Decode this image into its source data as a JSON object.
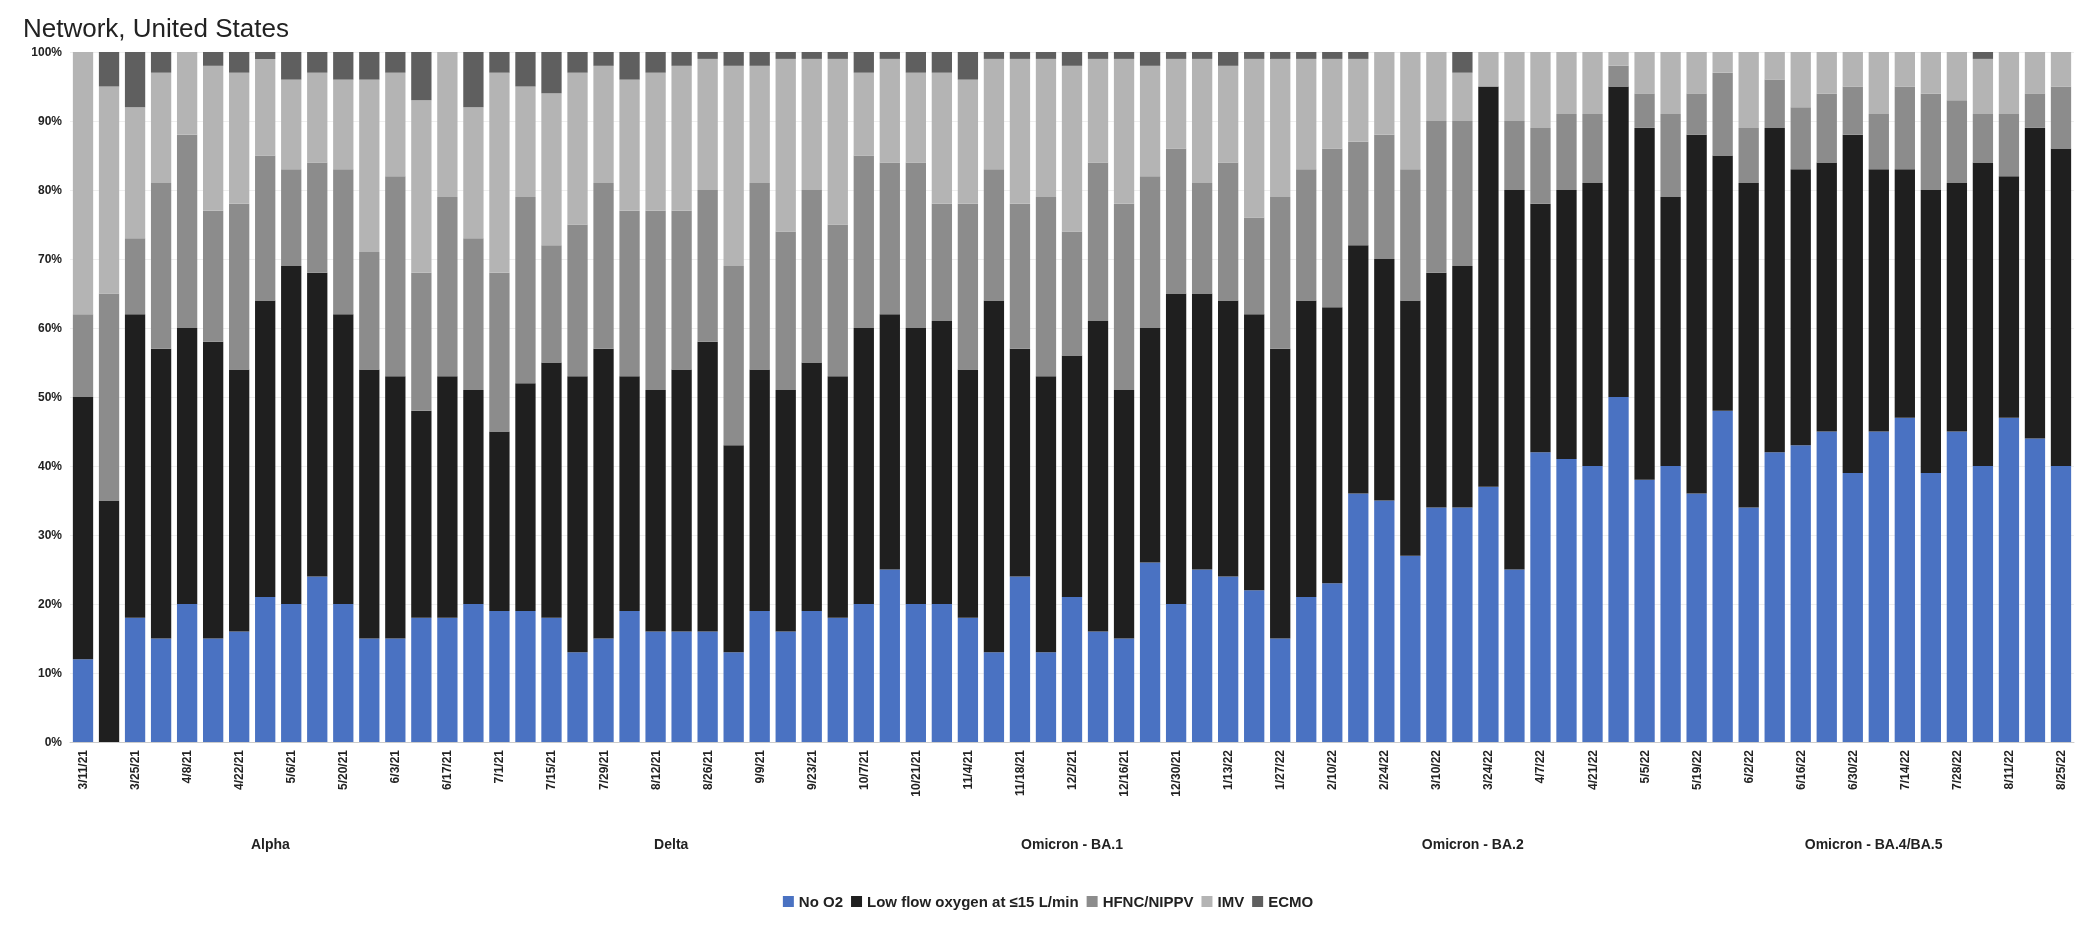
{
  "chart_data": {
    "type": "bar",
    "title": "Network, United States",
    "stacked": true,
    "legend": "bottom",
    "grid": "y",
    "categories": [
      "3/11/21",
      null,
      "3/25/21",
      null,
      "4/8/21",
      null,
      "4/22/21",
      null,
      "5/6/21",
      null,
      "5/20/21",
      null,
      "6/3/21",
      null,
      "6/17/21",
      null,
      "7/1/21",
      null,
      "7/15/21",
      null,
      "7/29/21",
      null,
      "8/12/21",
      null,
      "8/26/21",
      null,
      "9/9/21",
      null,
      "9/23/21",
      null,
      "10/7/21",
      null,
      "10/21/21",
      null,
      "11/4/21",
      null,
      "11/18/21",
      null,
      "12/2/21",
      null,
      "12/16/21",
      null,
      "12/30/21",
      null,
      "1/13/22",
      null,
      "1/27/22",
      null,
      "2/10/22",
      null,
      "2/24/22",
      null,
      "3/10/22",
      null,
      "3/24/22",
      null,
      "4/7/22",
      null,
      "4/21/22",
      null,
      "5/5/22",
      null,
      "5/19/22",
      null,
      "6/2/22",
      null,
      "6/16/22",
      null,
      "6/30/22",
      null,
      "7/14/22",
      null,
      "7/28/22",
      null,
      "8/11/22",
      null,
      "8/25/22"
    ],
    "ylim": [
      0,
      100
    ],
    "yticks": [
      {
        "value": 0,
        "label": "0%"
      },
      {
        "value": 10,
        "label": "10%"
      },
      {
        "value": 20,
        "label": "20%"
      },
      {
        "value": 30,
        "label": "30%"
      },
      {
        "value": 40,
        "label": "40%"
      },
      {
        "value": 50,
        "label": "50%"
      },
      {
        "value": 60,
        "label": "60%"
      },
      {
        "value": 70,
        "label": "70%"
      },
      {
        "value": 80,
        "label": "80%"
      },
      {
        "value": 90,
        "label": "90%"
      },
      {
        "value": 100,
        "label": "100%"
      }
    ],
    "series": [
      {
        "name": "No O2",
        "color": "#4a72c2",
        "values": [
          12,
          0,
          18,
          15,
          20,
          15,
          16,
          21,
          20,
          24,
          20,
          15,
          15,
          18,
          18,
          20,
          19,
          19,
          18,
          13,
          15,
          19,
          16,
          16,
          16,
          13,
          19,
          16,
          19,
          18,
          20,
          25,
          20,
          20,
          18,
          13,
          24,
          13,
          21,
          16,
          15,
          26,
          20,
          25,
          24,
          22,
          15,
          21,
          23,
          36,
          35,
          27,
          34,
          34,
          37,
          25,
          42,
          41,
          40,
          50,
          38,
          40,
          36,
          48,
          34,
          42,
          43,
          45,
          39,
          45,
          47,
          39,
          45,
          40,
          47,
          44,
          40
        ]
      },
      {
        "name": "Low flow oxygen at ≤15 L/min",
        "color": "#1f1f1f",
        "values": [
          38,
          35,
          44,
          42,
          40,
          43,
          38,
          43,
          49,
          44,
          42,
          39,
          38,
          30,
          35,
          31,
          26,
          33,
          37,
          40,
          42,
          34,
          35,
          38,
          42,
          30,
          35,
          35,
          36,
          35,
          40,
          37,
          40,
          41,
          36,
          51,
          33,
          40,
          35,
          45,
          36,
          34,
          45,
          40,
          40,
          40,
          42,
          43,
          40,
          36,
          35,
          37,
          34,
          35,
          58,
          55,
          36,
          39,
          41,
          45,
          51,
          39,
          52,
          37,
          47,
          47,
          40,
          39,
          49,
          38,
          36,
          41,
          36,
          44,
          35,
          45,
          46
        ]
      },
      {
        "name": "HFNC/NIPPV",
        "color": "#8c8c8c",
        "values": [
          12,
          30,
          11,
          24,
          28,
          19,
          24,
          21,
          14,
          16,
          21,
          17,
          29,
          20,
          26,
          22,
          23,
          27,
          17,
          22,
          24,
          24,
          26,
          23,
          22,
          26,
          27,
          23,
          25,
          22,
          25,
          22,
          24,
          17,
          24,
          19,
          21,
          26,
          18,
          23,
          27,
          22,
          21,
          16,
          20,
          14,
          22,
          19,
          23,
          15,
          18,
          19,
          22,
          21,
          0,
          10,
          11,
          11,
          10,
          3,
          5,
          12,
          6,
          12,
          8,
          7,
          9,
          10,
          7,
          8,
          12,
          14,
          12,
          7,
          9,
          5,
          9
        ]
      },
      {
        "name": "IMV",
        "color": "#b4b4b4",
        "values": [
          38,
          30,
          19,
          16,
          12,
          21,
          19,
          14,
          13,
          13,
          13,
          25,
          15,
          25,
          21,
          19,
          29,
          16,
          22,
          22,
          17,
          19,
          20,
          21,
          19,
          29,
          17,
          25,
          19,
          24,
          12,
          15,
          13,
          19,
          18,
          16,
          21,
          20,
          24,
          15,
          21,
          16,
          13,
          18,
          14,
          23,
          20,
          16,
          13,
          12,
          12,
          17,
          10,
          7,
          5,
          10,
          11,
          9,
          9,
          2,
          6,
          9,
          6,
          3,
          11,
          4,
          8,
          6,
          5,
          9,
          5,
          6,
          7,
          8,
          9,
          6,
          5
        ]
      },
      {
        "name": "ECMO",
        "color": "#5f5f5f",
        "values": [
          0,
          5,
          8,
          3,
          0,
          2,
          3,
          1,
          4,
          3,
          4,
          4,
          3,
          7,
          0,
          8,
          3,
          5,
          6,
          3,
          2,
          4,
          3,
          2,
          1,
          2,
          2,
          1,
          1,
          1,
          3,
          1,
          3,
          3,
          4,
          1,
          1,
          1,
          2,
          1,
          1,
          2,
          1,
          1,
          2,
          1,
          1,
          1,
          1,
          1,
          0,
          0,
          0,
          3,
          0,
          0,
          0,
          0,
          0,
          0,
          0,
          0,
          0,
          0,
          0,
          0,
          0,
          0,
          0,
          0,
          0,
          0,
          0,
          1,
          0,
          0,
          0
        ]
      }
    ],
    "annotations": [
      "Alpha",
      "Delta",
      "Omicron - BA.1",
      "Omicron - BA.2",
      "Omicron - BA.4/BA.5"
    ]
  }
}
